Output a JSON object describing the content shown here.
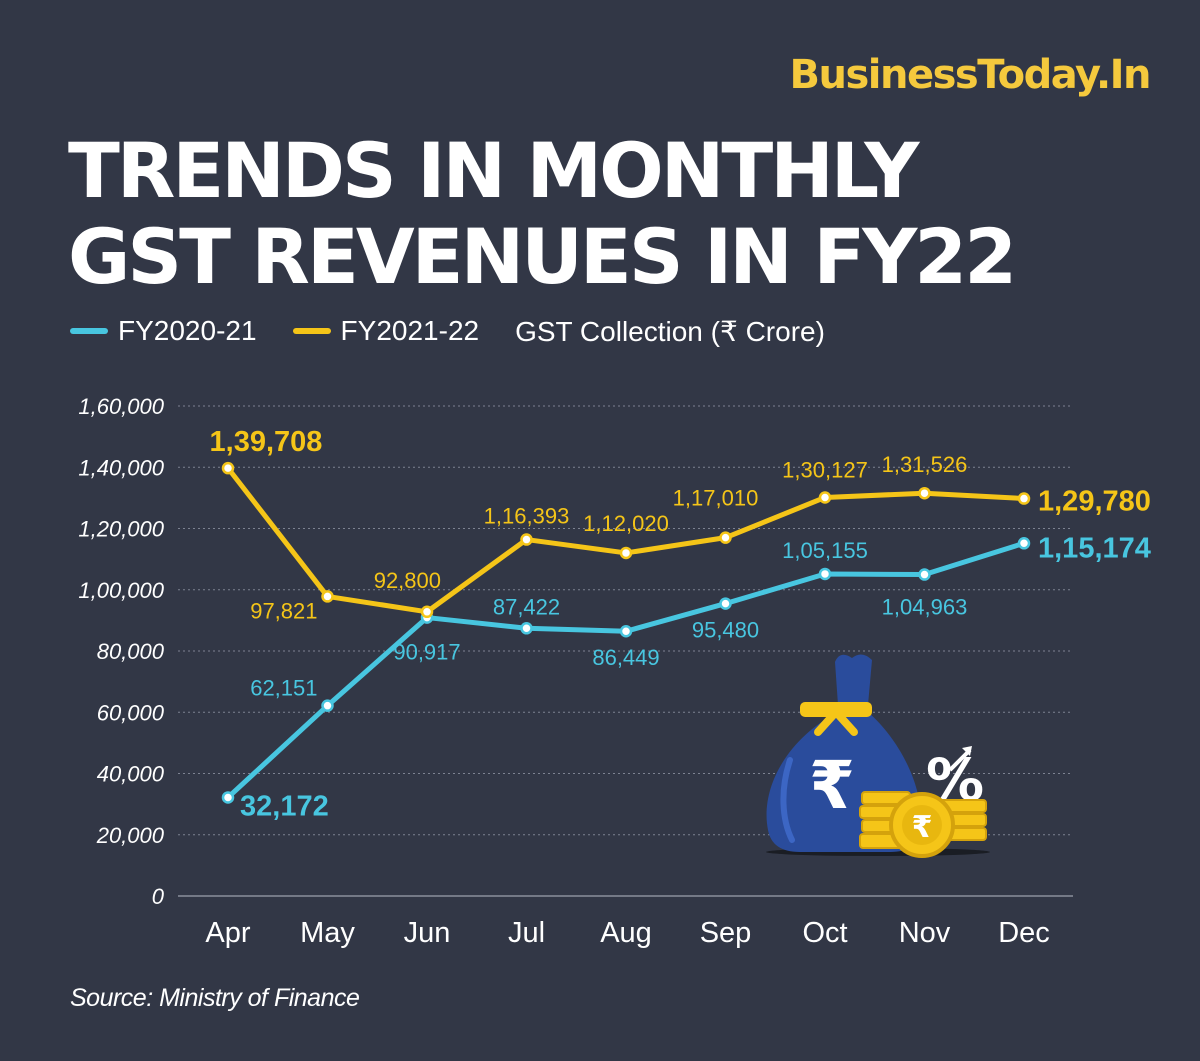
{
  "brand": "BusinessToday.In",
  "title_line1": "TRENDS IN MONTHLY",
  "title_line2": "GST REVENUES IN FY22",
  "legend": {
    "series1": "FY2020-21",
    "series2": "FY2021-22",
    "unit_note": "GST Collection (₹ Crore)"
  },
  "source": "Source: Ministry of Finance",
  "icons": [
    "money-bag-rupee-icon",
    "percent-up-icon",
    "gold-coin-stack-icon"
  ],
  "colors": {
    "background": "#323746",
    "series1": "#48C6E0",
    "series2": "#F5C518",
    "brand": "#F5C93D"
  },
  "chart_data": {
    "type": "line",
    "categories": [
      "Apr",
      "May",
      "Jun",
      "Jul",
      "Aug",
      "Sep",
      "Oct",
      "Nov",
      "Dec"
    ],
    "series": [
      {
        "name": "FY2020-21",
        "values": [
          32172,
          62151,
          90917,
          87422,
          86449,
          95480,
          105155,
          104963,
          115174
        ],
        "labels": [
          "32,172",
          "62,151",
          "90,917",
          "87,422",
          "86,449",
          "95,480",
          "1,05,155",
          "1,04,963",
          "1,15,174"
        ]
      },
      {
        "name": "FY2021-22",
        "values": [
          139708,
          97821,
          92800,
          116393,
          112020,
          117010,
          130127,
          131526,
          129780
        ],
        "labels": [
          "1,39,708",
          "97,821",
          "92,800",
          "1,16,393",
          "1,12,020",
          "1,17,010",
          "1,30,127",
          "1,31,526",
          "1,29,780"
        ]
      }
    ],
    "yticks": [
      0,
      20000,
      40000,
      60000,
      80000,
      100000,
      120000,
      140000,
      160000
    ],
    "ytick_labels": [
      "0",
      "20,000",
      "40,000",
      "60,000",
      "80,000",
      "1,00,000",
      "1,20,000",
      "1,40,000",
      "1,60,000"
    ],
    "ylim": [
      0,
      160000
    ],
    "grid": true
  }
}
